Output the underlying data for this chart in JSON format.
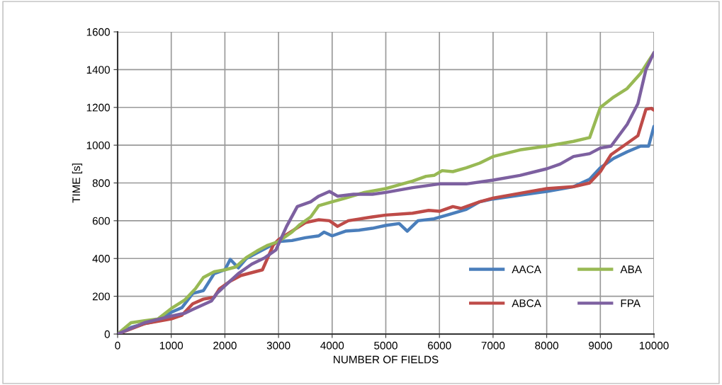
{
  "chart_data": {
    "type": "line",
    "xlabel": "NUMBER OF FIELDS",
    "ylabel": "TIME [s]",
    "xlim": [
      0,
      10000
    ],
    "xticks": [
      0,
      1000,
      2000,
      3000,
      4000,
      5000,
      6000,
      7000,
      8000,
      9000,
      10000
    ],
    "ylim": [
      0,
      1600
    ],
    "yticks": [
      0,
      200,
      400,
      600,
      800,
      1000,
      1200,
      1400,
      1600
    ],
    "grid": true,
    "legend": "bottom right",
    "marker": "none",
    "line_style": "solid",
    "series": [
      {
        "name": "AACA",
        "color": "#4a7ebb",
        "x": [
          0,
          250,
          500,
          750,
          1000,
          1200,
          1400,
          1600,
          1800,
          2000,
          2100,
          2250,
          2400,
          2600,
          2800,
          3000,
          3250,
          3500,
          3750,
          3850,
          4000,
          4250,
          4500,
          4750,
          5000,
          5250,
          5400,
          5600,
          5900,
          6200,
          6500,
          6750,
          7000,
          7500,
          8000,
          8500,
          8800,
          9000,
          9250,
          9500,
          9750,
          9900,
          10000
        ],
        "values": [
          0,
          35,
          55,
          70,
          115,
          140,
          215,
          230,
          320,
          340,
          395,
          350,
          400,
          430,
          460,
          490,
          495,
          510,
          520,
          540,
          520,
          545,
          550,
          560,
          575,
          585,
          545,
          600,
          610,
          635,
          660,
          700,
          715,
          735,
          755,
          780,
          820,
          880,
          930,
          965,
          995,
          995,
          1100
        ]
      },
      {
        "name": "ABCA",
        "color": "#be4b48",
        "x": [
          0,
          500,
          800,
          1000,
          1200,
          1400,
          1600,
          1800,
          1900,
          2100,
          2300,
          2500,
          2700,
          2900,
          3000,
          3250,
          3500,
          3750,
          3950,
          4100,
          4300,
          4750,
          5000,
          5500,
          5800,
          6000,
          6250,
          6400,
          6750,
          7000,
          7500,
          8000,
          8500,
          8800,
          9000,
          9200,
          9500,
          9700,
          9850,
          9950,
          10000
        ],
        "values": [
          0,
          55,
          70,
          80,
          100,
          160,
          185,
          195,
          240,
          280,
          310,
          325,
          340,
          470,
          500,
          545,
          590,
          605,
          600,
          570,
          600,
          620,
          630,
          640,
          655,
          650,
          675,
          665,
          700,
          720,
          745,
          770,
          780,
          800,
          860,
          950,
          1010,
          1050,
          1190,
          1195,
          1185
        ]
      },
      {
        "name": "ABA",
        "color": "#98b954",
        "x": [
          0,
          250,
          500,
          750,
          1000,
          1250,
          1450,
          1600,
          1800,
          2000,
          2200,
          2400,
          2600,
          2800,
          3000,
          3250,
          3400,
          3600,
          3750,
          4000,
          4250,
          4600,
          5000,
          5250,
          5500,
          5750,
          5900,
          6050,
          6250,
          6500,
          6750,
          7000,
          7500,
          8000,
          8500,
          8800,
          9000,
          9250,
          9500,
          9750,
          10000
        ],
        "values": [
          0,
          60,
          70,
          80,
          135,
          180,
          240,
          300,
          330,
          340,
          355,
          405,
          440,
          470,
          490,
          540,
          580,
          620,
          680,
          700,
          720,
          750,
          770,
          790,
          810,
          835,
          840,
          865,
          860,
          880,
          905,
          940,
          975,
          995,
          1020,
          1040,
          1200,
          1255,
          1300,
          1380,
          1490
        ]
      },
      {
        "name": "FPA",
        "color": "#7d60a0",
        "x": [
          0,
          500,
          1000,
          1250,
          1400,
          1750,
          1850,
          2000,
          2250,
          2500,
          2750,
          2950,
          3150,
          3350,
          3600,
          3750,
          3950,
          4100,
          4400,
          4750,
          5000,
          5500,
          6000,
          6500,
          7000,
          7500,
          8000,
          8250,
          8500,
          8800,
          9000,
          9200,
          9500,
          9700,
          9850,
          10000
        ],
        "values": [
          0,
          60,
          95,
          110,
          130,
          175,
          215,
          255,
          320,
          370,
          405,
          445,
          570,
          675,
          700,
          730,
          755,
          730,
          740,
          740,
          750,
          775,
          795,
          795,
          815,
          840,
          875,
          900,
          940,
          955,
          985,
          995,
          1110,
          1220,
          1400,
          1490
        ]
      }
    ]
  }
}
